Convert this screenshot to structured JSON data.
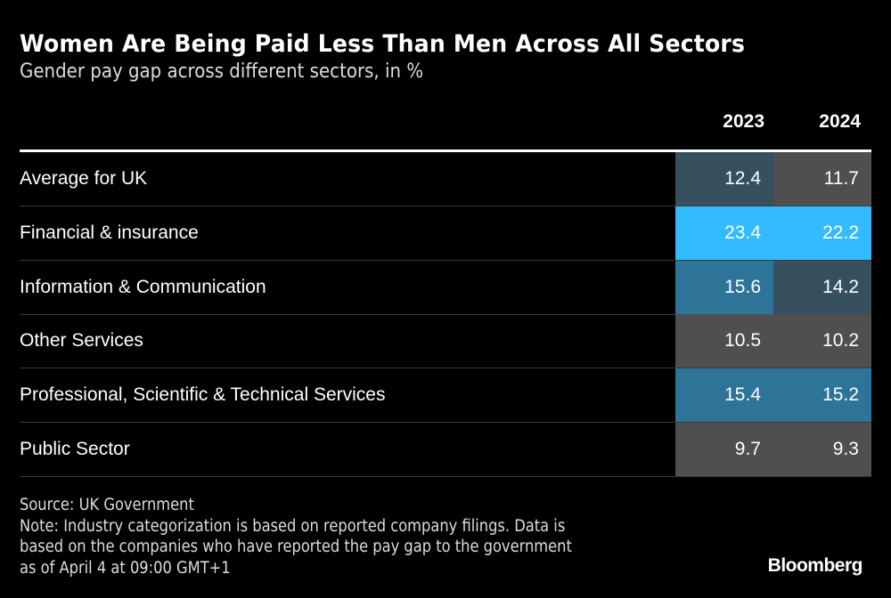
{
  "chart_data": {
    "type": "table",
    "title": "Women Are Being Paid Less Than Men Across All Sectors",
    "subtitle": "Gender pay gap across different sectors, in %",
    "columns": [
      "2023",
      "2024"
    ],
    "rows": [
      {
        "label": "Average for UK",
        "values": [
          "12.4",
          "11.7"
        ],
        "colors": [
          "#36505e",
          "#4f4f4f"
        ]
      },
      {
        "label": "Financial & insurance",
        "values": [
          "23.4",
          "22.2"
        ],
        "colors": [
          "#33bbff",
          "#33bbff"
        ]
      },
      {
        "label": "Information & Communication",
        "values": [
          "15.6",
          "14.2"
        ],
        "colors": [
          "#2e7398",
          "#36505e"
        ]
      },
      {
        "label": "Other Services",
        "values": [
          "10.5",
          "10.2"
        ],
        "colors": [
          "#4f4f4f",
          "#4f4f4f"
        ]
      },
      {
        "label": "Professional, Scientific & Technical Services",
        "values": [
          "15.4",
          "15.2"
        ],
        "colors": [
          "#2e7398",
          "#2e7398"
        ]
      },
      {
        "label": "Public Sector",
        "values": [
          "9.7",
          "9.3"
        ],
        "colors": [
          "#4f4f4f",
          "#4f4f4f"
        ]
      }
    ],
    "source": "Source: UK Government",
    "note_lines": [
      "Note: Industry categorization is based on reported company filings. Data is",
      "based on the companies who have reported the pay gap to the government",
      "as of April 4 at 09:00 GMT+1"
    ],
    "brand": "Bloomberg"
  }
}
